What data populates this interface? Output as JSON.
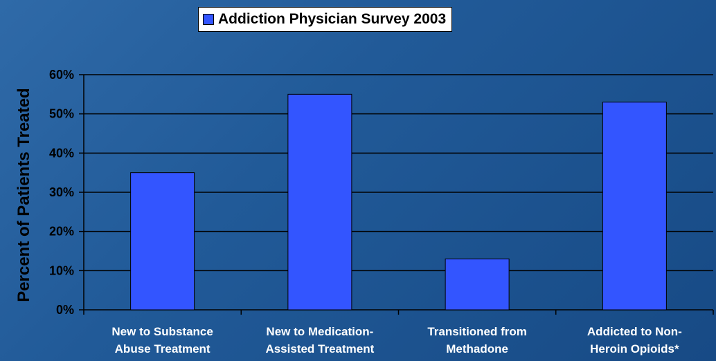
{
  "chart_data": {
    "type": "bar",
    "title": "",
    "xlabel": "",
    "ylabel": "Percent of Patients Treated",
    "categories": [
      "New to Substance Abuse Treatment",
      "New to Medication-Assisted Treatment",
      "Transitioned from Methadone",
      "Addicted to Non-Heroin Opioids*"
    ],
    "category_lines": [
      [
        "New to Substance",
        "Abuse Treatment"
      ],
      [
        "New to Medication-",
        "Assisted Treatment"
      ],
      [
        "Transitioned from",
        "Methadone"
      ],
      [
        "Addicted to Non-",
        "Heroin Opioids*"
      ]
    ],
    "series": [
      {
        "name": "Addiction Physician Survey 2003",
        "values": [
          35,
          55,
          13,
          53
        ]
      }
    ],
    "y_ticks": [
      "0%",
      "10%",
      "20%",
      "30%",
      "40%",
      "50%",
      "60%"
    ],
    "y_tick_values": [
      0,
      10,
      20,
      30,
      40,
      50,
      60
    ],
    "ylim": [
      0,
      60
    ],
    "grid": true,
    "legend_position": "top-center",
    "colors": {
      "bar": "#3355ff",
      "bar_outline": "#000000",
      "gridline": "#000000",
      "background_start": "#2f6aa8",
      "background_end": "#174a85"
    }
  }
}
